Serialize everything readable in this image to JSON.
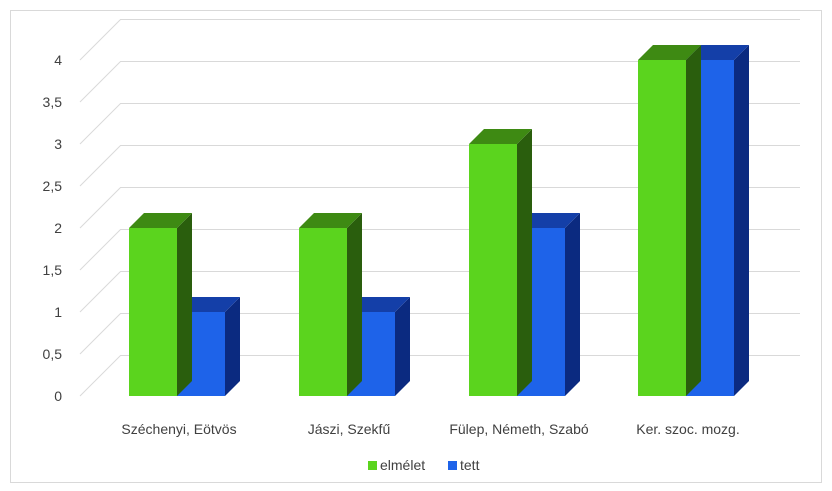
{
  "chart_data": {
    "type": "bar",
    "title": "",
    "xlabel": "",
    "ylabel": "",
    "categories": [
      "Széchenyi, Eötvös",
      "Jászi, Szekfű",
      "Fülep, Németh, Szabó",
      "Ker. szoc. mozg."
    ],
    "series": [
      {
        "name": "elmélet",
        "values": [
          2,
          2,
          3,
          4
        ],
        "color": "#5bd41e",
        "side_color": "#2a5e0d",
        "top_color": "#3e8a13"
      },
      {
        "name": "tett",
        "values": [
          1,
          1,
          2,
          4
        ],
        "color": "#1e63e9",
        "side_color": "#0b2a80",
        "top_color": "#143fa8"
      }
    ],
    "y_ticks": [
      "0",
      "0,5",
      "1",
      "1,5",
      "2",
      "2,5",
      "3",
      "3,5",
      "4"
    ],
    "ylim": [
      0,
      4
    ],
    "grid": true,
    "legend_position": "bottom",
    "style": "3d-clustered-column"
  }
}
